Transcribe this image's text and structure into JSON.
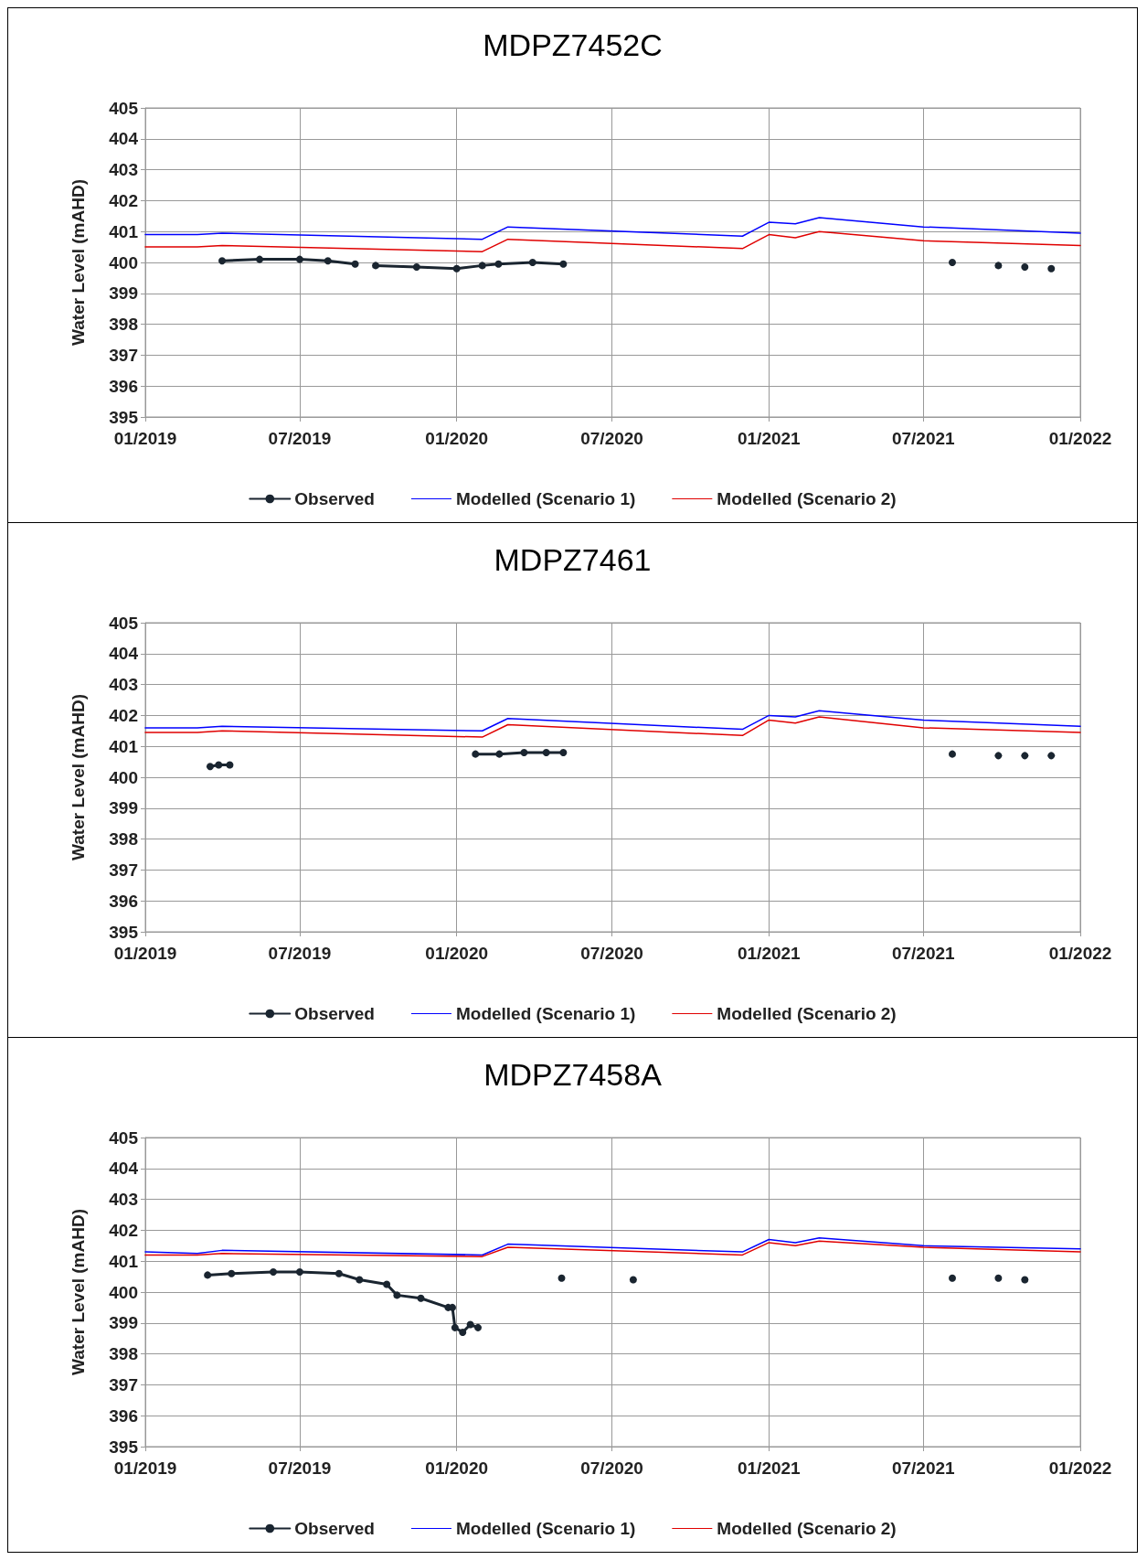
{
  "chart_data": [
    {
      "type": "line",
      "title": "MDPZ7452C",
      "ylabel": "Water Level (mAHD)",
      "xlim": [
        "2019-01-01",
        "2022-01-01"
      ],
      "xticks": [
        {
          "value": "2019-01-01",
          "label": "01/2019"
        },
        {
          "value": "2019-07-01",
          "label": "07/2019"
        },
        {
          "value": "2020-01-01",
          "label": "01/2020"
        },
        {
          "value": "2020-07-01",
          "label": "07/2020"
        },
        {
          "value": "2021-01-01",
          "label": "01/2021"
        },
        {
          "value": "2021-07-01",
          "label": "07/2021"
        },
        {
          "value": "2022-01-01",
          "label": "01/2022"
        }
      ],
      "ylim": [
        395,
        405
      ],
      "yticks": [
        395,
        396,
        397,
        398,
        399,
        400,
        401,
        402,
        403,
        404,
        405
      ],
      "grid": true,
      "legend": "bottom",
      "series": [
        {
          "name": "Observed",
          "color": "#1a2530",
          "marker": "circle",
          "x": [
            "2019-04-01",
            "2019-05-15",
            "2019-07-01",
            "2019-08-03",
            "2019-09-04",
            "2019-09-15",
            "2019-09-28",
            "2019-11-15",
            "2020-01-01",
            "2020-01-31",
            "2020-02-19",
            "2020-03-30",
            "2020-05-05",
            "2021-07-20",
            "2021-08-04",
            "2021-08-20",
            "2021-09-27",
            "2021-10-10",
            "2021-10-28",
            "2021-11-10",
            "2021-11-28"
          ],
          "values": [
            400.05,
            400.1,
            400.1,
            400.05,
            399.95,
            null,
            399.9,
            399.85,
            399.8,
            399.9,
            399.95,
            400.0,
            399.95,
            null,
            400.0,
            null,
            399.9,
            null,
            399.85,
            null,
            399.8
          ]
        },
        {
          "name": "Modelled (Scenario 1)",
          "color": "#0000ff",
          "marker": "none",
          "x": [
            "2019-01-01",
            "2019-03-03",
            "2019-04-01",
            "2020-01-31",
            "2020-03-01",
            "2020-12-01",
            "2021-01-01",
            "2021-02-01",
            "2021-03-01",
            "2021-07-01",
            "2022-01-01"
          ],
          "values": [
            400.9,
            400.9,
            400.95,
            400.75,
            401.15,
            400.85,
            401.3,
            401.25,
            401.45,
            401.15,
            400.95
          ]
        },
        {
          "name": "Modelled (Scenario 2)",
          "color": "#e00000",
          "marker": "none",
          "x": [
            "2019-01-01",
            "2019-03-03",
            "2019-04-01",
            "2020-01-31",
            "2020-03-01",
            "2020-12-01",
            "2021-01-01",
            "2021-02-01",
            "2021-03-01",
            "2021-07-01",
            "2022-01-01"
          ],
          "values": [
            400.5,
            400.5,
            400.55,
            400.35,
            400.75,
            400.45,
            400.9,
            400.8,
            401.0,
            400.7,
            400.55
          ]
        }
      ]
    },
    {
      "type": "line",
      "title": "MDPZ7461",
      "ylabel": "Water Level (mAHD)",
      "xlim": [
        "2019-01-01",
        "2022-01-01"
      ],
      "xticks": [
        {
          "value": "2019-01-01",
          "label": "01/2019"
        },
        {
          "value": "2019-07-01",
          "label": "07/2019"
        },
        {
          "value": "2020-01-01",
          "label": "01/2020"
        },
        {
          "value": "2020-07-01",
          "label": "07/2020"
        },
        {
          "value": "2021-01-01",
          "label": "01/2021"
        },
        {
          "value": "2021-07-01",
          "label": "07/2021"
        },
        {
          "value": "2022-01-01",
          "label": "01/2022"
        }
      ],
      "ylim": [
        395,
        405
      ],
      "yticks": [
        395,
        396,
        397,
        398,
        399,
        400,
        401,
        402,
        403,
        404,
        405
      ],
      "grid": true,
      "legend": "bottom",
      "series": [
        {
          "name": "Observed",
          "color": "#1a2530",
          "marker": "circle",
          "x": [
            "2019-03-18",
            "2019-03-28",
            "2019-04-10",
            "2019-10-01",
            "2020-01-23",
            "2020-02-20",
            "2020-03-20",
            "2020-04-15",
            "2020-05-05",
            "2021-07-20",
            "2021-08-04",
            "2021-08-20",
            "2021-09-27",
            "2021-10-10",
            "2021-10-28",
            "2021-11-10",
            "2021-11-28"
          ],
          "values": [
            400.35,
            400.4,
            400.4,
            null,
            400.75,
            400.75,
            400.8,
            400.8,
            400.8,
            null,
            400.75,
            null,
            400.7,
            null,
            400.7,
            null,
            400.7
          ]
        },
        {
          "name": "Modelled (Scenario 1)",
          "color": "#0000ff",
          "marker": "none",
          "x": [
            "2019-01-01",
            "2019-03-03",
            "2019-04-01",
            "2020-01-31",
            "2020-03-01",
            "2020-12-01",
            "2021-01-01",
            "2021-02-01",
            "2021-03-01",
            "2021-07-01",
            "2022-01-01"
          ],
          "values": [
            401.6,
            401.6,
            401.65,
            401.5,
            401.9,
            401.55,
            402.0,
            401.95,
            402.15,
            401.85,
            401.65
          ]
        },
        {
          "name": "Modelled (Scenario 2)",
          "color": "#e00000",
          "marker": "none",
          "x": [
            "2019-01-01",
            "2019-03-03",
            "2019-04-01",
            "2020-01-31",
            "2020-03-01",
            "2020-12-01",
            "2021-01-01",
            "2021-02-01",
            "2021-03-01",
            "2021-07-01",
            "2022-01-01"
          ],
          "values": [
            401.45,
            401.45,
            401.5,
            401.3,
            401.7,
            401.35,
            401.85,
            401.75,
            401.95,
            401.6,
            401.45
          ]
        }
      ]
    },
    {
      "type": "line",
      "title": "MDPZ7458A",
      "ylabel": "Water Level (mAHD)",
      "xlim": [
        "2019-01-01",
        "2022-01-01"
      ],
      "xticks": [
        {
          "value": "2019-01-01",
          "label": "01/2019"
        },
        {
          "value": "2019-07-01",
          "label": "07/2019"
        },
        {
          "value": "2020-01-01",
          "label": "01/2020"
        },
        {
          "value": "2020-07-01",
          "label": "07/2020"
        },
        {
          "value": "2021-01-01",
          "label": "01/2021"
        },
        {
          "value": "2021-07-01",
          "label": "07/2021"
        },
        {
          "value": "2022-01-01",
          "label": "01/2022"
        }
      ],
      "ylim": [
        395,
        405
      ],
      "yticks": [
        395,
        396,
        397,
        398,
        399,
        400,
        401,
        402,
        403,
        404,
        405
      ],
      "grid": true,
      "legend": "bottom",
      "series": [
        {
          "name": "Observed",
          "color": "#1a2530",
          "marker": "circle",
          "x": [
            "2019-03-15",
            "2019-04-12",
            "2019-05-31",
            "2019-07-01",
            "2019-08-16",
            "2019-09-09",
            "2019-10-11",
            "2019-10-23",
            "2019-11-20",
            "2019-12-22",
            "2019-12-27",
            "2019-12-30",
            "2020-01-08",
            "2020-01-17",
            "2020-01-26",
            "2020-04-01",
            "2020-05-03",
            "2020-06-15",
            "2020-07-26",
            "2021-07-20",
            "2021-08-04",
            "2021-08-20",
            "2021-09-27",
            "2021-10-10",
            "2021-10-28"
          ],
          "values": [
            400.55,
            400.6,
            400.65,
            400.65,
            400.6,
            400.4,
            400.25,
            399.9,
            399.8,
            399.5,
            399.5,
            398.85,
            398.7,
            398.95,
            398.85,
            null,
            400.45,
            null,
            400.4,
            null,
            400.45,
            null,
            400.45,
            null,
            400.4
          ]
        },
        {
          "name": "Modelled (Scenario 1)",
          "color": "#0000ff",
          "marker": "none",
          "x": [
            "2019-01-01",
            "2019-03-03",
            "2019-04-01",
            "2020-01-31",
            "2020-03-01",
            "2020-12-01",
            "2021-01-01",
            "2021-02-01",
            "2021-03-01",
            "2021-07-01",
            "2022-01-01"
          ],
          "values": [
            401.3,
            401.25,
            401.35,
            401.2,
            401.55,
            401.3,
            401.7,
            401.6,
            401.75,
            401.5,
            401.4
          ]
        },
        {
          "name": "Modelled (Scenario 2)",
          "color": "#e00000",
          "marker": "none",
          "x": [
            "2019-01-01",
            "2019-03-03",
            "2019-04-01",
            "2020-01-31",
            "2020-03-01",
            "2020-12-01",
            "2021-01-01",
            "2021-02-01",
            "2021-03-01",
            "2021-07-01",
            "2022-01-01"
          ],
          "values": [
            401.2,
            401.2,
            401.25,
            401.15,
            401.45,
            401.2,
            401.6,
            401.5,
            401.65,
            401.45,
            401.3
          ]
        }
      ]
    }
  ]
}
